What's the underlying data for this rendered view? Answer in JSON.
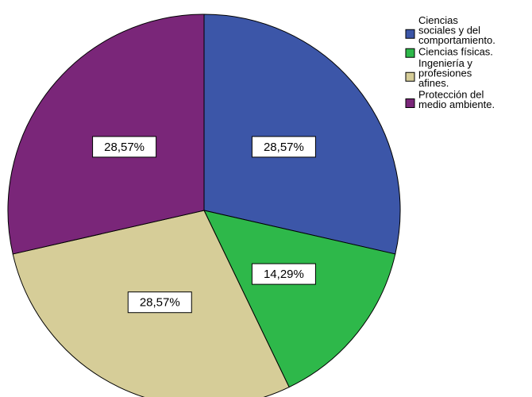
{
  "chart_data": {
    "type": "pie",
    "title": "",
    "categories": [
      "Ciencias sociales y del comportamiento.",
      "Ciencias físicas.",
      "Ingeniería y profesiones afines.",
      "Protección del medio ambiente."
    ],
    "values": [
      28.57,
      14.29,
      28.57,
      28.57
    ],
    "data_labels": [
      "28,57%",
      "14,29%",
      "28,57%",
      "28,57%"
    ],
    "colors": [
      "#3c56a8",
      "#2eb84a",
      "#d6cd98",
      "#7a2679"
    ],
    "legend": {
      "placement": "top-right",
      "entries": [
        {
          "lines": [
            "Ciencias",
            "sociales y del",
            "comportamiento."
          ]
        },
        {
          "lines": [
            "Ciencias físicas."
          ]
        },
        {
          "lines": [
            "Ingeniería y",
            "profesiones",
            "afines."
          ]
        },
        {
          "lines": [
            "Protección del",
            "medio ambiente."
          ]
        }
      ]
    },
    "start_angle_deg": 0,
    "direction": "clockwise"
  }
}
